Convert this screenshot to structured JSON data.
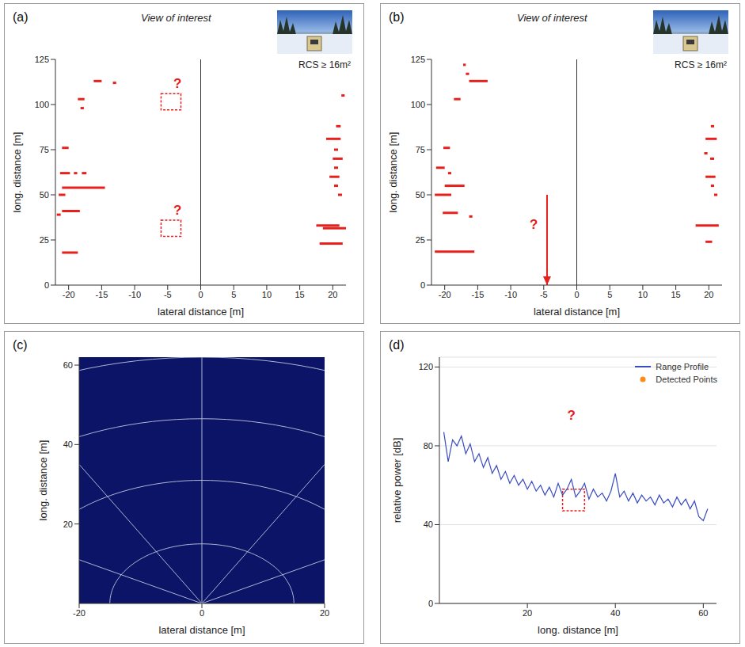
{
  "chart_data": [
    {
      "panel_label": "(a)",
      "type": "scatter",
      "title": "View of interest",
      "annotation": "RCS ≥ 16m²",
      "x_label": "lateral distance [m]",
      "y_label": "long. distance [m]",
      "xlim": [
        -22,
        22
      ],
      "xticks": [
        -20,
        -15,
        -10,
        -5,
        0,
        5,
        10,
        15,
        20
      ],
      "ylim": [
        0,
        125
      ],
      "yticks": [
        0,
        25,
        50,
        75,
        100,
        125
      ],
      "color": "#e8201c",
      "detections": [
        {
          "x": [
            -16.2,
            -15
          ],
          "y": 113
        },
        {
          "x": [
            -13.3,
            -12.8
          ],
          "y": 112
        },
        {
          "x": [
            -18.6,
            -17.6
          ],
          "y": 103
        },
        {
          "x": [
            -18.2,
            -17.7
          ],
          "y": 98
        },
        {
          "x": [
            -21,
            -20
          ],
          "y": 76
        },
        {
          "x": [
            -21.3,
            -19.8
          ],
          "y": 62
        },
        {
          "x": [
            -19.2,
            -18.7
          ],
          "y": 62
        },
        {
          "x": [
            -18,
            -17.3
          ],
          "y": 62
        },
        {
          "x": [
            -21,
            -14.5
          ],
          "y": 54
        },
        {
          "x": [
            -21.5,
            -20.5
          ],
          "y": 50
        },
        {
          "x": [
            -21,
            -18.3
          ],
          "y": 41
        },
        {
          "x": [
            -21.8,
            -21.2
          ],
          "y": 39
        },
        {
          "x": [
            -21,
            -18.6
          ],
          "y": 18
        },
        {
          "x": [
            21.3,
            21.8
          ],
          "y": 105
        },
        {
          "x": [
            20.5,
            21.2
          ],
          "y": 88
        },
        {
          "x": [
            19,
            21.2
          ],
          "y": 81
        },
        {
          "x": [
            20.2,
            20.8
          ],
          "y": 75
        },
        {
          "x": [
            20,
            21.5
          ],
          "y": 70
        },
        {
          "x": [
            20.2,
            20.8
          ],
          "y": 65
        },
        {
          "x": [
            19.5,
            21
          ],
          "y": 60
        },
        {
          "x": [
            20.2,
            20.8
          ],
          "y": 55
        },
        {
          "x": [
            20.8,
            21.4
          ],
          "y": 50
        },
        {
          "x": [
            17.5,
            21
          ],
          "y": 33
        },
        {
          "x": [
            18.5,
            22
          ],
          "y": 31.5
        },
        {
          "x": [
            18,
            21.5
          ],
          "y": 23
        }
      ],
      "marked_regions": [
        {
          "x": [
            -6,
            -3
          ],
          "y": [
            97,
            106
          ]
        },
        {
          "x": [
            -6,
            -3
          ],
          "y": [
            27,
            36
          ]
        }
      ],
      "annotations": [
        {
          "text": "?",
          "x": -3.5,
          "y": 111
        },
        {
          "text": "?",
          "x": -3.5,
          "y": 41
        }
      ]
    },
    {
      "panel_label": "(b)",
      "type": "scatter",
      "title": "View of interest",
      "annotation": "RCS ≥ 16m²",
      "x_label": "lateral distance [m]",
      "y_label": "long. distance [m]",
      "xlim": [
        -22,
        22
      ],
      "xticks": [
        -20,
        -15,
        -10,
        -5,
        0,
        5,
        10,
        15,
        20
      ],
      "ylim": [
        0,
        125
      ],
      "yticks": [
        0,
        25,
        50,
        75,
        100,
        125
      ],
      "color": "#e8201c",
      "detections": [
        {
          "x": [
            -17.2,
            -16.8
          ],
          "y": 122
        },
        {
          "x": [
            -16.8,
            -16.3
          ],
          "y": 117
        },
        {
          "x": [
            -16.3,
            -13.5
          ],
          "y": 113
        },
        {
          "x": [
            -18.6,
            -17.6
          ],
          "y": 103
        },
        {
          "x": [
            -20.2,
            -19.2
          ],
          "y": 76
        },
        {
          "x": [
            -21.3,
            -20
          ],
          "y": 65
        },
        {
          "x": [
            -19.5,
            -19
          ],
          "y": 62
        },
        {
          "x": [
            -20,
            -17
          ],
          "y": 55
        },
        {
          "x": [
            -21.5,
            -19
          ],
          "y": 50
        },
        {
          "x": [
            -20.3,
            -18
          ],
          "y": 40
        },
        {
          "x": [
            -16.3,
            -15.8
          ],
          "y": 38
        },
        {
          "x": [
            -21.5,
            -15.5
          ],
          "y": 18.5
        },
        {
          "x": [
            20.3,
            20.8
          ],
          "y": 88
        },
        {
          "x": [
            19.5,
            21.2
          ],
          "y": 81
        },
        {
          "x": [
            19.3,
            19.8
          ],
          "y": 73
        },
        {
          "x": [
            20.2,
            20.8
          ],
          "y": 70
        },
        {
          "x": [
            19.5,
            21
          ],
          "y": 60
        },
        {
          "x": [
            20.3,
            20.8
          ],
          "y": 55
        },
        {
          "x": [
            20.8,
            21.3
          ],
          "y": 50
        },
        {
          "x": [
            18,
            21.5
          ],
          "y": 33
        },
        {
          "x": [
            19.5,
            20.5
          ],
          "y": 24
        }
      ],
      "arrow": {
        "x": -4.5,
        "y": [
          50,
          0
        ]
      },
      "annotations": [
        {
          "text": "?",
          "x": -6.5,
          "y": 33
        }
      ]
    },
    {
      "panel_label": "(c)",
      "type": "radar_grid",
      "x_label": "lateral distance [m]",
      "y_label": "long. distance [m]",
      "xlim": [
        -20,
        20
      ],
      "xticks": [
        -20,
        0,
        20
      ],
      "ylim": [
        0,
        62
      ],
      "yticks": [
        20,
        40,
        60
      ],
      "color": "#0b1466"
    },
    {
      "panel_label": "(d)",
      "type": "line",
      "x_label": "long. distance [m]",
      "y_label": "relative power [dB]",
      "xlim": [
        0,
        63
      ],
      "xticks": [
        20,
        40,
        60
      ],
      "ylim": [
        0,
        125
      ],
      "yticks": [
        0,
        40,
        80,
        120
      ],
      "grid": true,
      "legend": "top-right",
      "x": [
        1,
        2,
        3,
        4,
        5,
        6,
        7,
        8,
        9,
        10,
        11,
        12,
        13,
        14,
        15,
        16,
        17,
        18,
        19,
        20,
        21,
        22,
        23,
        24,
        25,
        26,
        27,
        28,
        29,
        30,
        31,
        32,
        33,
        34,
        35,
        36,
        37,
        38,
        39,
        40,
        41,
        42,
        43,
        44,
        45,
        46,
        47,
        48,
        49,
        50,
        51,
        52,
        53,
        54,
        55,
        56,
        57,
        58,
        59,
        60,
        61
      ],
      "series": [
        {
          "name": "Range Profile",
          "color": "#3b4cc0",
          "line_style": "solid",
          "values": [
            87,
            72,
            83,
            80,
            85,
            76,
            81,
            72,
            76,
            69,
            74,
            66,
            70,
            63,
            67,
            61,
            65,
            60,
            63,
            58,
            62,
            57,
            60,
            55,
            59,
            54,
            61,
            55,
            58,
            63,
            54,
            57,
            61,
            53,
            58,
            54,
            56,
            52,
            57,
            66,
            54,
            57,
            52,
            56,
            51,
            55,
            52,
            54,
            50,
            55,
            51,
            53,
            49,
            54,
            50,
            53,
            48,
            52,
            44,
            42,
            48
          ]
        },
        {
          "name": "Detected Points",
          "color": "#ff8c1a",
          "marker": "circle",
          "line_style": "none",
          "values": [
            null,
            null,
            null,
            null,
            null,
            null,
            null,
            null,
            null,
            null,
            null,
            null,
            null,
            null,
            null,
            null,
            null,
            null,
            null,
            null,
            null,
            null,
            null,
            null,
            null,
            null,
            null,
            null,
            null,
            null,
            null,
            null,
            null,
            null,
            null,
            null,
            null,
            null,
            null,
            null,
            null,
            null,
            null,
            null,
            null,
            null,
            null,
            null,
            null,
            null,
            null,
            null,
            null,
            null,
            null,
            null,
            null,
            null,
            null,
            null,
            null
          ]
        }
      ],
      "marked_regions": [
        {
          "x": [
            28,
            33
          ],
          "y": [
            47,
            58
          ]
        }
      ],
      "annotations": [
        {
          "text": "?",
          "x": 30,
          "y": 95
        }
      ]
    }
  ]
}
